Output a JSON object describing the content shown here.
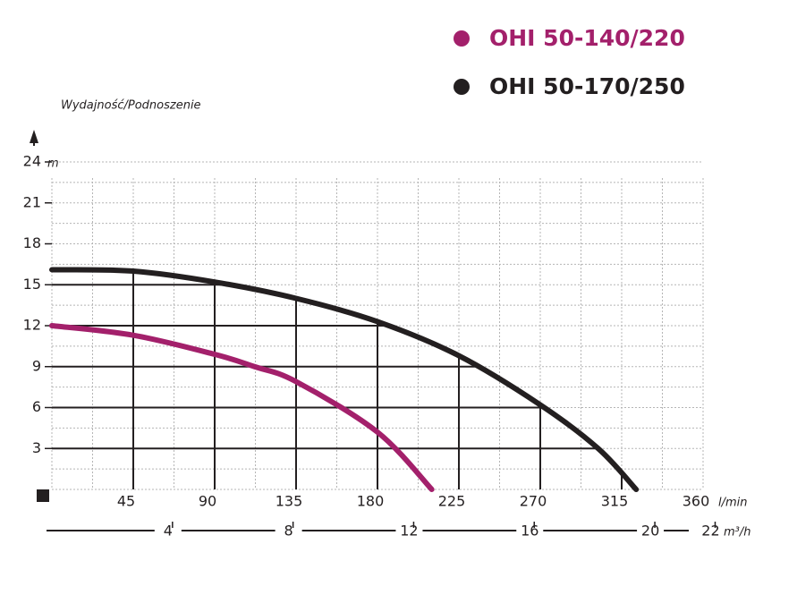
{
  "chart_data": {
    "type": "line",
    "y_label": "Wydajność/Podnoszenie",
    "y_unit": "m",
    "x_unit": "l/min",
    "x2_unit": "m³/h",
    "xlim": [
      0,
      360
    ],
    "xticks": [
      45,
      90,
      135,
      180,
      225,
      270,
      315,
      360
    ],
    "ylim": [
      0,
      24
    ],
    "yticks": [
      3,
      6,
      9,
      12,
      15,
      18,
      21,
      24
    ],
    "x2lim": [
      0,
      21.6
    ],
    "x2ticks": [
      4,
      8,
      12,
      16,
      20,
      22
    ],
    "grid": true,
    "series": [
      {
        "name": "OHI 50-140/220",
        "color": "#a3206b",
        "x": [
          0,
          45,
          90,
          112,
          135,
          180,
          210
        ],
        "values": [
          12,
          11.3,
          9.9,
          9.0,
          7.9,
          4.2,
          0
        ]
      },
      {
        "name": "OHI 50-170/250",
        "color": "#231f20",
        "x": [
          0,
          45,
          90,
          135,
          180,
          225,
          270,
          302,
          323
        ],
        "values": [
          16.1,
          16.0,
          15.2,
          14.0,
          12.3,
          9.8,
          6.2,
          3.0,
          0
        ]
      }
    ]
  }
}
